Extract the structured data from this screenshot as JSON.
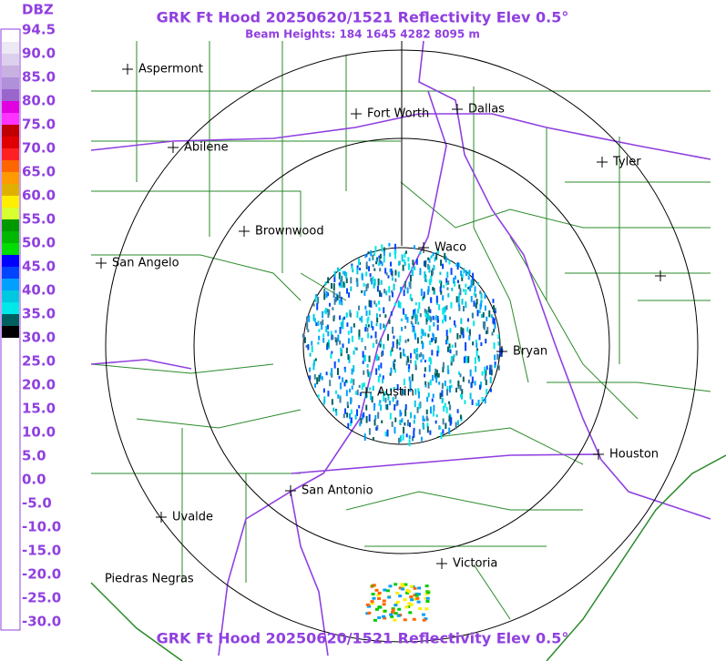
{
  "header": {
    "title": "GRK Ft Hood 20250620/1521 Reflectivity Elev 0.5°",
    "subtitle": "Beam Heights: 184 1645 4282 8095 m"
  },
  "footer": {
    "title": "GRK Ft Hood 20250620/1521 Reflectivity Elev 0.5°"
  },
  "legend": {
    "title": "DBZ",
    "ticks": [
      "94.5",
      "90.0",
      "85.0",
      "80.0",
      "75.0",
      "70.0",
      "65.0",
      "60.0",
      "55.0",
      "50.0",
      "45.0",
      "40.0",
      "35.0",
      "30.0",
      "25.0",
      "20.0",
      "15.0",
      "10.0",
      "5.0",
      "0.0",
      "-5.0",
      "-10.0",
      "-15.0",
      "-20.0",
      "-25.0",
      "-30.0"
    ]
  },
  "map": {
    "cities": [
      {
        "label": "Aspermont"
      },
      {
        "label": "Fort Worth"
      },
      {
        "label": "Dallas"
      },
      {
        "label": "Abilene"
      },
      {
        "label": "Tyler"
      },
      {
        "label": "Brownwood"
      },
      {
        "label": "Waco"
      },
      {
        "label": "San Angelo"
      },
      {
        "label": "Bryan"
      },
      {
        "label": "Austin"
      },
      {
        "label": "Houston"
      },
      {
        "label": "San Antonio"
      },
      {
        "label": "Uvalde"
      },
      {
        "label": "Victoria"
      },
      {
        "label": "Piedras Negras"
      }
    ]
  }
}
